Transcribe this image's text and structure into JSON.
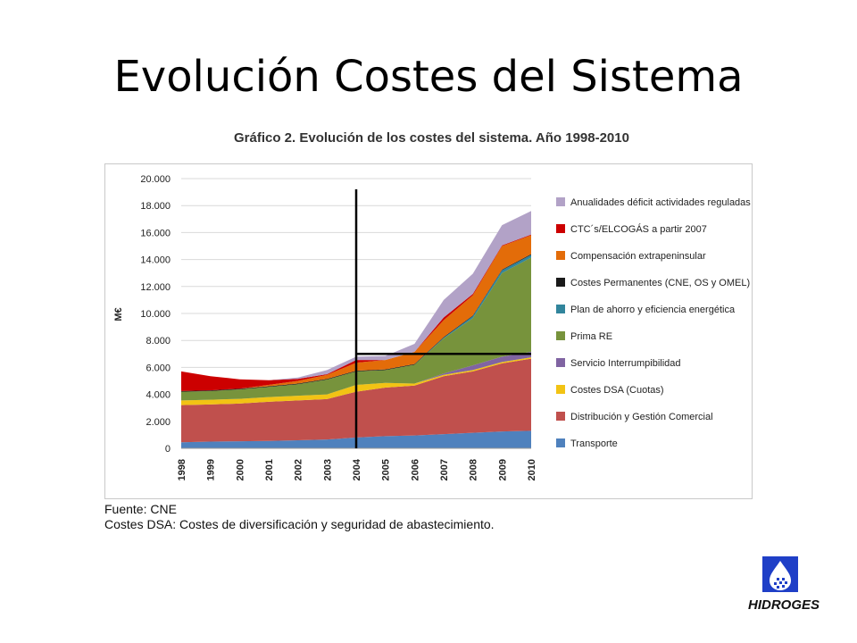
{
  "slide": {
    "title": "Evolución Costes del Sistema"
  },
  "notes": {
    "source": "Fuente: CNE",
    "dsa": "Costes DSA: Costes de diversificación y seguridad de abastecimiento."
  },
  "logo": {
    "text": "HIDROGES"
  },
  "chart_data": {
    "type": "area",
    "stacked": true,
    "title": "Gráfico 2. Evolución de los costes del sistema. Año 1998-2010",
    "xlabel": "",
    "ylabel": "M€",
    "ylim": [
      0,
      20000
    ],
    "yticks": [
      "0",
      "2.000",
      "4.000",
      "6.000",
      "8.000",
      "10.000",
      "12.000",
      "14.000",
      "16.000",
      "18.000",
      "20.000"
    ],
    "grid": true,
    "legend_position": "right",
    "x": [
      "1998",
      "1999",
      "2000",
      "2001",
      "2002",
      "2003",
      "2004",
      "2005",
      "2006",
      "2007",
      "2008",
      "2009",
      "2010"
    ],
    "series": [
      {
        "name": "Transporte",
        "color": "#4f81bd",
        "values": [
          450,
          500,
          520,
          550,
          600,
          650,
          800,
          900,
          950,
          1050,
          1150,
          1250,
          1300
        ]
      },
      {
        "name": "Distribución y Gestión Comercial",
        "color": "#c0504d",
        "values": [
          2750,
          2750,
          2800,
          2900,
          2950,
          3000,
          3400,
          3600,
          3700,
          4300,
          4550,
          5050,
          5350
        ]
      },
      {
        "name": "Costes DSA (Cuotas)",
        "color": "#f2c314",
        "values": [
          350,
          350,
          350,
          350,
          350,
          350,
          500,
          350,
          150,
          100,
          100,
          100,
          100
        ]
      },
      {
        "name": "Servicio Interrumpibilidad",
        "color": "#8064a2",
        "values": [
          0,
          0,
          0,
          0,
          0,
          0,
          0,
          0,
          0,
          100,
          350,
          400,
          400
        ]
      },
      {
        "name": "Prima RE",
        "color": "#77933c",
        "values": [
          650,
          650,
          700,
          750,
          850,
          1100,
          1000,
          950,
          1400,
          2600,
          3500,
          6200,
          7000
        ]
      },
      {
        "name": "Plan de ahorro y eficiencia energética",
        "color": "#31859c",
        "values": [
          0,
          0,
          0,
          0,
          0,
          0,
          0,
          0,
          0,
          50,
          150,
          200,
          200
        ]
      },
      {
        "name": "Costes Permanentes (CNE, OS y OMEL)",
        "color": "#1a1a1a",
        "values": [
          50,
          50,
          50,
          50,
          50,
          50,
          50,
          50,
          50,
          50,
          50,
          50,
          50
        ]
      },
      {
        "name": "Compensación extrapeninsular",
        "color": "#e36c09",
        "values": [
          0,
          0,
          0,
          100,
          200,
          300,
          600,
          700,
          900,
          1250,
          1500,
          1750,
          1400
        ]
      },
      {
        "name": "CTC´s/ELCOGÁS a partir 2007",
        "color": "#cc0000",
        "values": [
          1450,
          1050,
          700,
          350,
          150,
          50,
          200,
          0,
          0,
          200,
          100,
          50,
          50
        ]
      },
      {
        "name": "Anualidades déficit actividades reguladas",
        "color": "#b2a2c7",
        "values": [
          0,
          0,
          0,
          0,
          100,
          300,
          250,
          300,
          600,
          1300,
          1500,
          1500,
          1750
        ]
      }
    ],
    "annotations": {
      "vertical_line_at": "2004",
      "horizontal_line_value": 7000
    }
  }
}
